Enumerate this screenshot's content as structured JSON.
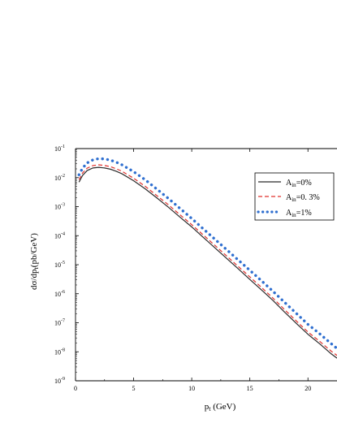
{
  "chart_data": {
    "type": "line",
    "title": "",
    "xlabel": "p_t (GeV)",
    "xlabel_main": "p",
    "xlabel_sub": "t",
    "xlabel_tail": " (GeV)",
    "ylabel": "dσ/dp_t(pb/GeV)",
    "ylabel_main": "dσ/dp",
    "ylabel_sub": "t",
    "ylabel_tail": "(pb/GeV)",
    "xlim": [
      0,
      22.5
    ],
    "ylim_log10": [
      -9,
      -1
    ],
    "yscale": "log",
    "x_ticks": [
      "0",
      "5",
      "10",
      "15",
      "20"
    ],
    "y_ticks": [
      {
        "base": "10",
        "exp": "-1"
      },
      {
        "base": "10",
        "exp": "-2"
      },
      {
        "base": "10",
        "exp": "-3"
      },
      {
        "base": "10",
        "exp": "-4"
      },
      {
        "base": "10",
        "exp": "-5"
      },
      {
        "base": "10",
        "exp": "-6"
      },
      {
        "base": "10",
        "exp": "-7"
      },
      {
        "base": "10",
        "exp": "-8"
      },
      {
        "base": "10",
        "exp": "-9"
      }
    ],
    "legend_position": "top-right",
    "series": [
      {
        "name": "A_in=0%",
        "name_main": "A",
        "name_sub": "in",
        "name_tail": "=0%",
        "color": "#2b2b2b",
        "style": "solid",
        "x": [
          0.3,
          0.6,
          1,
          1.5,
          2,
          2.5,
          3,
          3.5,
          4,
          5,
          6,
          7,
          8,
          9,
          10,
          11,
          12,
          13,
          14,
          15,
          16,
          17,
          18,
          19,
          20,
          21,
          22,
          22.5
        ],
        "y": [
          0.007,
          0.0118,
          0.0175,
          0.0215,
          0.0225,
          0.0215,
          0.0195,
          0.0165,
          0.0135,
          0.0078,
          0.0041,
          0.002,
          0.00095,
          0.00043,
          0.0002,
          8.7e-05,
          3.8e-05,
          1.65e-05,
          7.2e-06,
          3.1e-06,
          1.35e-06,
          5.8e-07,
          2.3e-07,
          9.5e-08,
          4e-08,
          1.9e-08,
          8.5e-09,
          6e-09
        ]
      },
      {
        "name": "A_in=0. 3%",
        "name_main": "A",
        "name_sub": "in",
        "name_tail": "=0. 3%",
        "color": "#e0302c",
        "style": "dashed",
        "x": [
          0.3,
          0.6,
          1,
          1.5,
          2,
          2.5,
          3,
          3.5,
          4,
          5,
          6,
          7,
          8,
          9,
          10,
          11,
          12,
          13,
          14,
          15,
          16,
          17,
          18,
          19,
          20,
          21,
          22,
          22.5
        ],
        "y": [
          0.0085,
          0.0143,
          0.0212,
          0.026,
          0.0275,
          0.0262,
          0.0238,
          0.0202,
          0.0165,
          0.0095,
          0.005,
          0.0024,
          0.00115,
          0.00052,
          0.00024,
          0.000105,
          4.6e-05,
          2e-05,
          8.7e-06,
          3.8e-06,
          1.65e-06,
          7e-07,
          2.8e-07,
          1.15e-07,
          4.8e-08,
          2.3e-08,
          1.05e-08,
          7.5e-09
        ]
      },
      {
        "name": "A_in=1%",
        "name_main": "A",
        "name_sub": "in",
        "name_tail": "=1%",
        "color": "#2f6fd0",
        "style": "dotted",
        "x": [
          0.3,
          0.6,
          1,
          1.5,
          2,
          2.5,
          3,
          3.5,
          4,
          5,
          6,
          7,
          8,
          9,
          10,
          11,
          12,
          13,
          14,
          15,
          16,
          17,
          18,
          19,
          20,
          21,
          22,
          22.5
        ],
        "y": [
          0.0125,
          0.021,
          0.032,
          0.041,
          0.045,
          0.044,
          0.04,
          0.034,
          0.0275,
          0.016,
          0.0084,
          0.004,
          0.0019,
          0.00086,
          0.00039,
          0.00017,
          7.5e-05,
          3.3e-05,
          1.45e-05,
          6.4e-06,
          2.8e-06,
          1.2e-06,
          5e-07,
          2.1e-07,
          8.8e-08,
          4.2e-08,
          1.9e-08,
          1.3e-08
        ]
      }
    ]
  }
}
